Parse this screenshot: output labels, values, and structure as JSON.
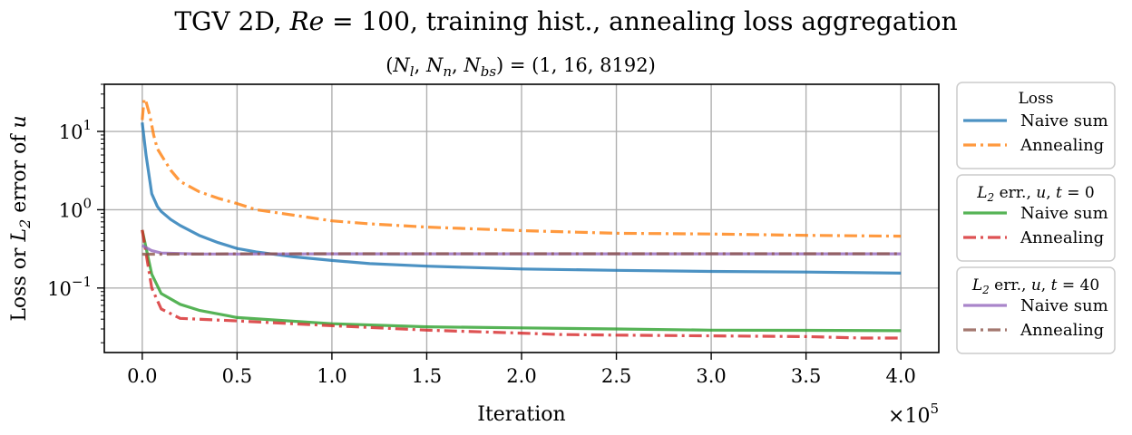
{
  "chart_data": {
    "type": "line",
    "title": "TGV 2D, Re = 100, training hist., annealing loss aggregation",
    "subtitle": "(N_l, N_n, N_bs) = (1, 16, 8192)",
    "xlabel": "Iteration",
    "ylabel": "Loss or L2 error of u",
    "x_multiplier": "×10^5",
    "x_scale": "linear",
    "y_scale": "log",
    "xlim": [
      -0.2,
      4.2
    ],
    "ylim": [
      0.015,
      40
    ],
    "grid": true,
    "x_ticks": [
      "0.0",
      "0.5",
      "1.0",
      "1.5",
      "2.0",
      "2.5",
      "3.0",
      "3.5",
      "4.0"
    ],
    "y_ticks": [
      "10^-1",
      "10^0",
      "10^1"
    ],
    "legend_placement": "outside-right",
    "legend_groups": [
      {
        "title": "Loss",
        "entries": [
          "Naive sum",
          "Annealing"
        ]
      },
      {
        "title": "L2 err., u, t = 0",
        "entries": [
          "Naive sum",
          "Annealing"
        ]
      },
      {
        "title": "L2 err., u, t = 40",
        "entries": [
          "Naive sum",
          "Annealing"
        ]
      }
    ],
    "series": [
      {
        "group": "Loss",
        "name": "Naive sum",
        "color": "#1f77b4",
        "style": "solid",
        "x": [
          0,
          0.02,
          0.05,
          0.08,
          0.1,
          0.15,
          0.2,
          0.3,
          0.4,
          0.5,
          0.6,
          0.8,
          1.0,
          1.2,
          1.5,
          2.0,
          2.5,
          3.0,
          3.5,
          4.0
        ],
        "y": [
          13,
          5,
          1.6,
          1.1,
          0.95,
          0.75,
          0.63,
          0.47,
          0.38,
          0.32,
          0.29,
          0.25,
          0.225,
          0.205,
          0.19,
          0.175,
          0.168,
          0.163,
          0.16,
          0.155
        ]
      },
      {
        "group": "Loss",
        "name": "Annealing",
        "color": "#ff7f0e",
        "style": "dashdot",
        "x": [
          0,
          0.01,
          0.02,
          0.04,
          0.06,
          0.08,
          0.1,
          0.15,
          0.2,
          0.3,
          0.4,
          0.5,
          0.6,
          0.8,
          1.0,
          1.2,
          1.5,
          2.0,
          2.5,
          3.0,
          3.5,
          4.0
        ],
        "y": [
          14,
          26,
          24,
          16,
          9,
          6,
          5,
          3.2,
          2.3,
          1.7,
          1.4,
          1.2,
          1.0,
          0.85,
          0.72,
          0.66,
          0.6,
          0.54,
          0.5,
          0.49,
          0.47,
          0.46
        ]
      },
      {
        "group": "L2 err., u, t = 0",
        "name": "Naive sum",
        "color": "#2ca02c",
        "style": "solid",
        "x": [
          0,
          0.05,
          0.1,
          0.2,
          0.3,
          0.5,
          0.7,
          1.0,
          1.5,
          2.0,
          2.5,
          3.0,
          3.5,
          4.0
        ],
        "y": [
          0.55,
          0.15,
          0.085,
          0.062,
          0.052,
          0.042,
          0.039,
          0.035,
          0.032,
          0.031,
          0.03,
          0.029,
          0.0288,
          0.0285
        ]
      },
      {
        "group": "L2 err., u, t = 0",
        "name": "Annealing",
        "color": "#d62728",
        "style": "dashdot",
        "x": [
          0,
          0.05,
          0.1,
          0.15,
          0.2,
          0.5,
          1.0,
          1.5,
          2.0,
          2.2,
          2.5,
          3.0,
          3.5,
          3.8,
          4.0
        ],
        "y": [
          0.55,
          0.1,
          0.054,
          0.047,
          0.041,
          0.038,
          0.033,
          0.029,
          0.0265,
          0.0255,
          0.025,
          0.0245,
          0.024,
          0.023,
          0.023
        ]
      },
      {
        "group": "L2 err., u, t = 40",
        "name": "Naive sum",
        "color": "#9467bd",
        "style": "solid",
        "x": [
          0,
          0.05,
          0.1,
          0.3,
          0.5,
          1.0,
          2.0,
          3.0,
          4.0
        ],
        "y": [
          0.35,
          0.3,
          0.28,
          0.272,
          0.272,
          0.273,
          0.273,
          0.273,
          0.273
        ]
      },
      {
        "group": "L2 err., u, t = 40",
        "name": "Annealing",
        "color": "#8c564b",
        "style": "dashdot",
        "x": [
          0,
          0.1,
          0.5,
          1.0,
          2.0,
          3.0,
          4.0
        ],
        "y": [
          0.27,
          0.27,
          0.273,
          0.274,
          0.274,
          0.274,
          0.274
        ]
      }
    ]
  }
}
